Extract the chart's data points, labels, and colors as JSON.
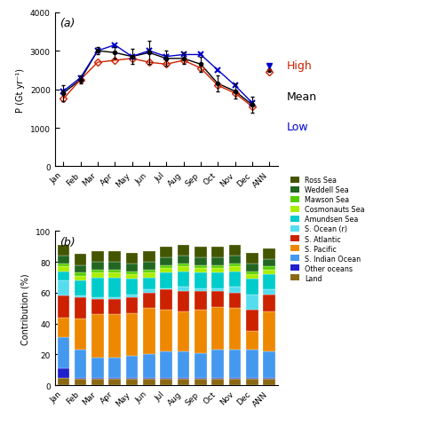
{
  "months": [
    "Jan",
    "Feb",
    "Mar",
    "Apr",
    "May",
    "Jun",
    "Jul",
    "Aug",
    "Sep",
    "Oct",
    "Nov",
    "Dec",
    "ANN"
  ],
  "mean_vals": [
    1900,
    2250,
    3000,
    2950,
    2850,
    2950,
    2800,
    2800,
    2650,
    2150,
    1950,
    1600,
    2500
  ],
  "high_vals": [
    1750,
    2250,
    2700,
    2750,
    2800,
    2700,
    2650,
    2750,
    2550,
    2100,
    1900,
    1550,
    2450
  ],
  "low_vals": [
    1950,
    2300,
    3000,
    3150,
    2850,
    3000,
    2850,
    2900,
    2900,
    2500,
    2100,
    1650,
    2600
  ],
  "mean_err_lo": [
    200,
    100,
    100,
    150,
    200,
    300,
    200,
    150,
    200,
    200,
    200,
    200,
    0
  ],
  "mean_err_hi": [
    200,
    100,
    100,
    150,
    200,
    300,
    200,
    150,
    200,
    200,
    200,
    200,
    0
  ],
  "line_color_mean": "#000000",
  "line_color_high": "#cc2200",
  "line_color_low": "#0000cc",
  "bar_layers": {
    "Land": [
      5,
      4,
      4,
      4,
      4,
      4,
      4,
      4,
      4,
      4,
      4,
      4,
      4
    ],
    "Other oceans": [
      6,
      1,
      1,
      1,
      1,
      1,
      1,
      1,
      1,
      1,
      1,
      1,
      1
    ],
    "S. Indian Ocean": [
      20,
      18,
      13,
      13,
      14,
      15,
      17,
      17,
      16,
      18,
      18,
      18,
      17
    ],
    "S. Pacific": [
      13,
      20,
      28,
      28,
      28,
      30,
      27,
      26,
      28,
      28,
      27,
      12,
      26
    ],
    "S. Atlantic": [
      14,
      14,
      10,
      10,
      10,
      10,
      13,
      13,
      12,
      10,
      10,
      14,
      11
    ],
    "S. Ocean (r)": [
      10,
      1,
      1,
      1,
      2,
      2,
      1,
      3,
      2,
      2,
      4,
      10,
      3
    ],
    "Amundsen Sea": [
      6,
      10,
      13,
      13,
      10,
      8,
      10,
      10,
      10,
      10,
      10,
      10,
      10
    ],
    "Cosmonauts Sea": [
      3,
      3,
      3,
      3,
      3,
      3,
      3,
      3,
      3,
      3,
      3,
      3,
      3
    ],
    "Mawson Sea": [
      2,
      2,
      2,
      2,
      2,
      2,
      2,
      2,
      2,
      2,
      2,
      2,
      2
    ],
    "Weddell Sea": [
      5,
      5,
      5,
      5,
      5,
      5,
      5,
      5,
      5,
      5,
      5,
      5,
      5
    ],
    "Ross Sea": [
      7,
      7,
      7,
      7,
      7,
      7,
      7,
      7,
      7,
      7,
      7,
      7,
      7
    ]
  },
  "bar_colors": {
    "Land": "#8B6914",
    "Other oceans": "#2020cc",
    "S. Indian Ocean": "#4499ee",
    "S. Pacific": "#ee8800",
    "S. Atlantic": "#cc2200",
    "S. Ocean (r)": "#55ddee",
    "Amundsen Sea": "#00cccc",
    "Cosmonauts Sea": "#aaee00",
    "Mawson Sea": "#55cc00",
    "Weddell Sea": "#226622",
    "Ross Sea": "#445500"
  },
  "title_a": "(a)",
  "title_b": "(b)",
  "ylabel_a": "P (Gt yr⁻¹)",
  "ylabel_b": "Contribution (%)",
  "ylim_a": [
    0,
    4000
  ],
  "yticks_a": [
    0,
    1000,
    2000,
    3000,
    4000
  ],
  "ylim_b": [
    0,
    100
  ],
  "yticks_b": [
    0,
    20,
    40,
    60,
    80,
    100
  ]
}
